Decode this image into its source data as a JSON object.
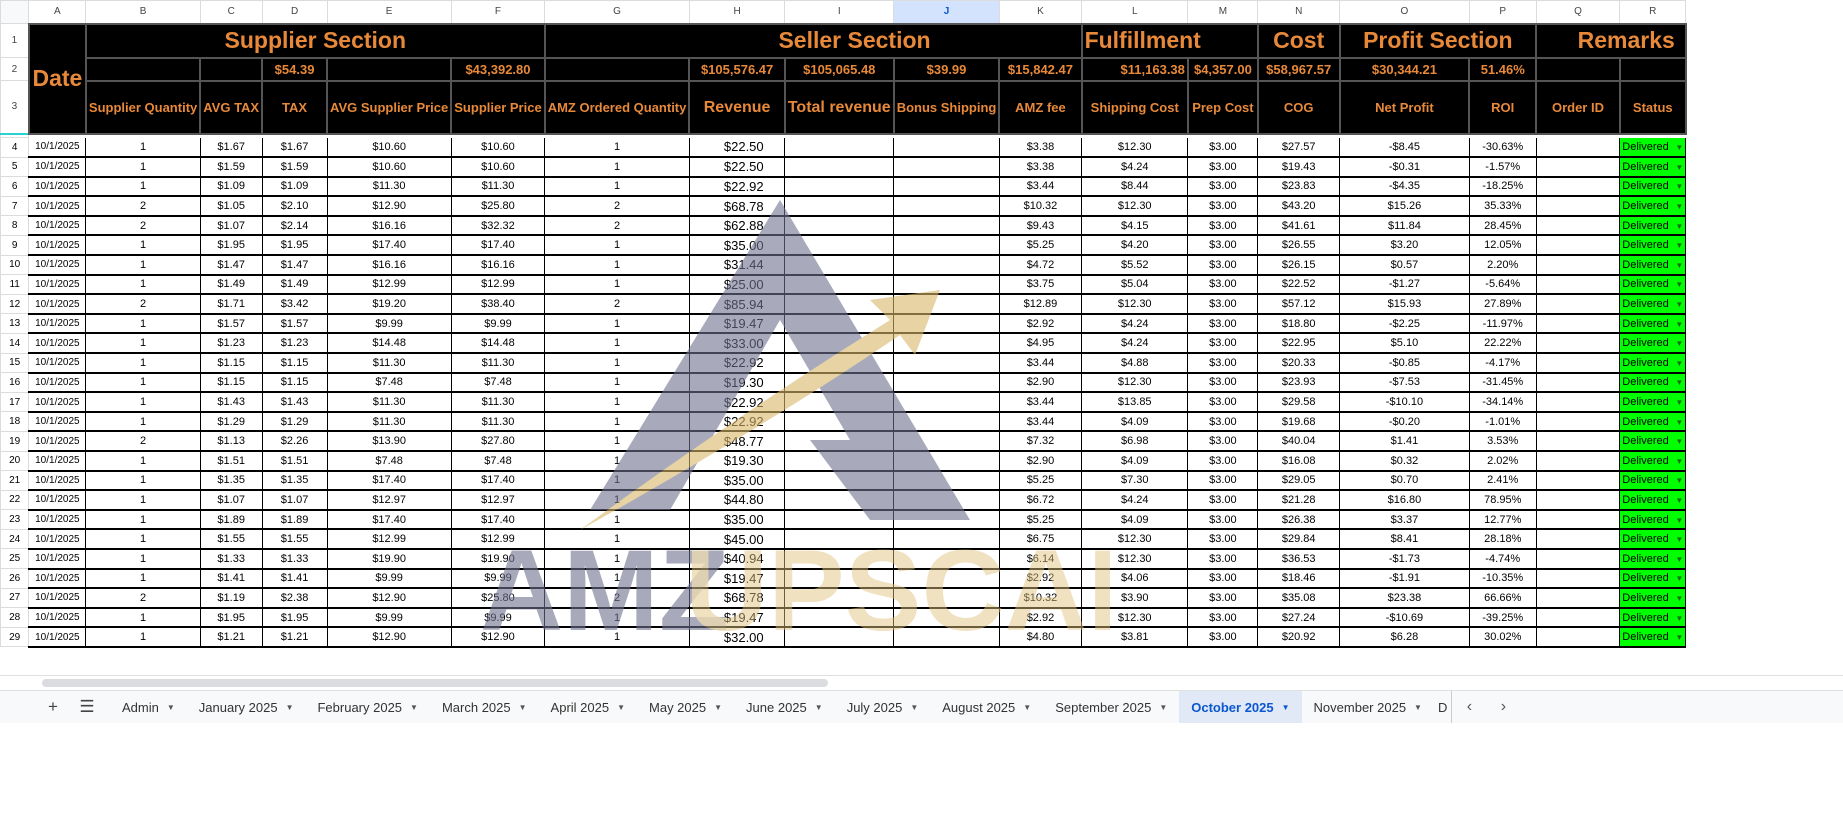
{
  "columns": [
    "A",
    "B",
    "C",
    "D",
    "E",
    "F",
    "G",
    "H",
    "I",
    "J",
    "K",
    "L",
    "M",
    "N",
    "O",
    "P",
    "Q",
    "R"
  ],
  "selected_column": "J",
  "header": {
    "date": "Date",
    "sections": {
      "supplier": "Supplier Section",
      "seller": "Seller Section",
      "fulfillment": "Fulfillment",
      "cost": "Cost",
      "profit": "Profit Section",
      "remarks": "Remarks"
    },
    "totals": {
      "D": "$54.39",
      "F": "$43,392.80",
      "H": "$105,576.47",
      "I": "$105,065.48",
      "J": "$39.99",
      "K": "$15,842.47",
      "L": "$11,163.38",
      "M": "$4,357.00",
      "N": "$58,967.57",
      "O": "$30,344.21",
      "P": "51.46%"
    },
    "labels": {
      "B": "Supplier Quantity",
      "C": "AVG TAX",
      "D": "TAX",
      "E": "AVG Supplier Price",
      "F": "Supplier Price",
      "G": "AMZ Ordered Quantity",
      "H": "Revenue",
      "I": "Total revenue",
      "J": "Bonus Shipping",
      "K": "AMZ fee",
      "L": "Shipping Cost",
      "M": "Prep Cost",
      "N": "COG",
      "O": "Net Profit",
      "P": "ROI",
      "Q": "Order ID",
      "R": "Status"
    }
  },
  "colors": {
    "header_bg": "#000000",
    "header_text": "#e8893a",
    "status_delivered": "#00ff00",
    "separator": "#2ad1d1"
  },
  "rows": [
    {
      "n": "4",
      "date": "10/1/2025",
      "qty": "1",
      "avg_tax": "$1.67",
      "tax": "$1.67",
      "avg_sup": "$10.60",
      "sup": "$10.60",
      "amz_qty": "1",
      "revenue": "$22.50",
      "total_rev": "",
      "bonus": "",
      "fee": "$3.38",
      "ship": "$12.30",
      "prep": "$3.00",
      "cog": "$27.57",
      "net": "-$8.45",
      "roi": "-30.63%",
      "order": "",
      "status": "Delivered"
    },
    {
      "n": "5",
      "date": "10/1/2025",
      "qty": "1",
      "avg_tax": "$1.59",
      "tax": "$1.59",
      "avg_sup": "$10.60",
      "sup": "$10.60",
      "amz_qty": "1",
      "revenue": "$22.50",
      "total_rev": "",
      "bonus": "",
      "fee": "$3.38",
      "ship": "$4.24",
      "prep": "$3.00",
      "cog": "$19.43",
      "net": "-$0.31",
      "roi": "-1.57%",
      "order": "",
      "status": "Delivered"
    },
    {
      "n": "6",
      "date": "10/1/2025",
      "qty": "1",
      "avg_tax": "$1.09",
      "tax": "$1.09",
      "avg_sup": "$11.30",
      "sup": "$11.30",
      "amz_qty": "1",
      "revenue": "$22.92",
      "total_rev": "",
      "bonus": "",
      "fee": "$3.44",
      "ship": "$8.44",
      "prep": "$3.00",
      "cog": "$23.83",
      "net": "-$4.35",
      "roi": "-18.25%",
      "order": "",
      "status": "Delivered"
    },
    {
      "n": "7",
      "date": "10/1/2025",
      "qty": "2",
      "avg_tax": "$1.05",
      "tax": "$2.10",
      "avg_sup": "$12.90",
      "sup": "$25.80",
      "amz_qty": "2",
      "revenue": "$68.78",
      "total_rev": "",
      "bonus": "",
      "fee": "$10.32",
      "ship": "$12.30",
      "prep": "$3.00",
      "cog": "$43.20",
      "net": "$15.26",
      "roi": "35.33%",
      "order": "",
      "status": "Delivered"
    },
    {
      "n": "8",
      "date": "10/1/2025",
      "qty": "2",
      "avg_tax": "$1.07",
      "tax": "$2.14",
      "avg_sup": "$16.16",
      "sup": "$32.32",
      "amz_qty": "2",
      "revenue": "$62.88",
      "total_rev": "",
      "bonus": "",
      "fee": "$9.43",
      "ship": "$4.15",
      "prep": "$3.00",
      "cog": "$41.61",
      "net": "$11.84",
      "roi": "28.45%",
      "order": "",
      "status": "Delivered"
    },
    {
      "n": "9",
      "date": "10/1/2025",
      "qty": "1",
      "avg_tax": "$1.95",
      "tax": "$1.95",
      "avg_sup": "$17.40",
      "sup": "$17.40",
      "amz_qty": "1",
      "revenue": "$35.00",
      "total_rev": "",
      "bonus": "",
      "fee": "$5.25",
      "ship": "$4.20",
      "prep": "$3.00",
      "cog": "$26.55",
      "net": "$3.20",
      "roi": "12.05%",
      "order": "",
      "status": "Delivered"
    },
    {
      "n": "10",
      "date": "10/1/2025",
      "qty": "1",
      "avg_tax": "$1.47",
      "tax": "$1.47",
      "avg_sup": "$16.16",
      "sup": "$16.16",
      "amz_qty": "1",
      "revenue": "$31.44",
      "total_rev": "",
      "bonus": "",
      "fee": "$4.72",
      "ship": "$5.52",
      "prep": "$3.00",
      "cog": "$26.15",
      "net": "$0.57",
      "roi": "2.20%",
      "order": "",
      "status": "Delivered"
    },
    {
      "n": "11",
      "date": "10/1/2025",
      "qty": "1",
      "avg_tax": "$1.49",
      "tax": "$1.49",
      "avg_sup": "$12.99",
      "sup": "$12.99",
      "amz_qty": "1",
      "revenue": "$25.00",
      "total_rev": "",
      "bonus": "",
      "fee": "$3.75",
      "ship": "$5.04",
      "prep": "$3.00",
      "cog": "$22.52",
      "net": "-$1.27",
      "roi": "-5.64%",
      "order": "",
      "status": "Delivered"
    },
    {
      "n": "12",
      "date": "10/1/2025",
      "qty": "2",
      "avg_tax": "$1.71",
      "tax": "$3.42",
      "avg_sup": "$19.20",
      "sup": "$38.40",
      "amz_qty": "2",
      "revenue": "$85.94",
      "total_rev": "",
      "bonus": "",
      "fee": "$12.89",
      "ship": "$12.30",
      "prep": "$3.00",
      "cog": "$57.12",
      "net": "$15.93",
      "roi": "27.89%",
      "order": "",
      "status": "Delivered"
    },
    {
      "n": "13",
      "date": "10/1/2025",
      "qty": "1",
      "avg_tax": "$1.57",
      "tax": "$1.57",
      "avg_sup": "$9.99",
      "sup": "$9.99",
      "amz_qty": "1",
      "revenue": "$19.47",
      "total_rev": "",
      "bonus": "",
      "fee": "$2.92",
      "ship": "$4.24",
      "prep": "$3.00",
      "cog": "$18.80",
      "net": "-$2.25",
      "roi": "-11.97%",
      "order": "",
      "status": "Delivered"
    },
    {
      "n": "14",
      "date": "10/1/2025",
      "qty": "1",
      "avg_tax": "$1.23",
      "tax": "$1.23",
      "avg_sup": "$14.48",
      "sup": "$14.48",
      "amz_qty": "1",
      "revenue": "$33.00",
      "total_rev": "",
      "bonus": "",
      "fee": "$4.95",
      "ship": "$4.24",
      "prep": "$3.00",
      "cog": "$22.95",
      "net": "$5.10",
      "roi": "22.22%",
      "order": "",
      "status": "Delivered"
    },
    {
      "n": "15",
      "date": "10/1/2025",
      "qty": "1",
      "avg_tax": "$1.15",
      "tax": "$1.15",
      "avg_sup": "$11.30",
      "sup": "$11.30",
      "amz_qty": "1",
      "revenue": "$22.92",
      "total_rev": "",
      "bonus": "",
      "fee": "$3.44",
      "ship": "$4.88",
      "prep": "$3.00",
      "cog": "$20.33",
      "net": "-$0.85",
      "roi": "-4.17%",
      "order": "",
      "status": "Delivered"
    },
    {
      "n": "16",
      "date": "10/1/2025",
      "qty": "1",
      "avg_tax": "$1.15",
      "tax": "$1.15",
      "avg_sup": "$7.48",
      "sup": "$7.48",
      "amz_qty": "1",
      "revenue": "$19.30",
      "total_rev": "",
      "bonus": "",
      "fee": "$2.90",
      "ship": "$12.30",
      "prep": "$3.00",
      "cog": "$23.93",
      "net": "-$7.53",
      "roi": "-31.45%",
      "order": "",
      "status": "Delivered"
    },
    {
      "n": "17",
      "date": "10/1/2025",
      "qty": "1",
      "avg_tax": "$1.43",
      "tax": "$1.43",
      "avg_sup": "$11.30",
      "sup": "$11.30",
      "amz_qty": "1",
      "revenue": "$22.92",
      "total_rev": "",
      "bonus": "",
      "fee": "$3.44",
      "ship": "$13.85",
      "prep": "$3.00",
      "cog": "$29.58",
      "net": "-$10.10",
      "roi": "-34.14%",
      "order": "",
      "status": "Delivered"
    },
    {
      "n": "18",
      "date": "10/1/2025",
      "qty": "1",
      "avg_tax": "$1.29",
      "tax": "$1.29",
      "avg_sup": "$11.30",
      "sup": "$11.30",
      "amz_qty": "1",
      "revenue": "$22.92",
      "total_rev": "",
      "bonus": "",
      "fee": "$3.44",
      "ship": "$4.09",
      "prep": "$3.00",
      "cog": "$19.68",
      "net": "-$0.20",
      "roi": "-1.01%",
      "order": "",
      "status": "Delivered"
    },
    {
      "n": "19",
      "date": "10/1/2025",
      "qty": "2",
      "avg_tax": "$1.13",
      "tax": "$2.26",
      "avg_sup": "$13.90",
      "sup": "$27.80",
      "amz_qty": "1",
      "revenue": "$48.77",
      "total_rev": "",
      "bonus": "",
      "fee": "$7.32",
      "ship": "$6.98",
      "prep": "$3.00",
      "cog": "$40.04",
      "net": "$1.41",
      "roi": "3.53%",
      "order": "",
      "status": "Delivered"
    },
    {
      "n": "20",
      "date": "10/1/2025",
      "qty": "1",
      "avg_tax": "$1.51",
      "tax": "$1.51",
      "avg_sup": "$7.48",
      "sup": "$7.48",
      "amz_qty": "1",
      "revenue": "$19.30",
      "total_rev": "",
      "bonus": "",
      "fee": "$2.90",
      "ship": "$4.09",
      "prep": "$3.00",
      "cog": "$16.08",
      "net": "$0.32",
      "roi": "2.02%",
      "order": "",
      "status": "Delivered"
    },
    {
      "n": "21",
      "date": "10/1/2025",
      "qty": "1",
      "avg_tax": "$1.35",
      "tax": "$1.35",
      "avg_sup": "$17.40",
      "sup": "$17.40",
      "amz_qty": "1",
      "revenue": "$35.00",
      "total_rev": "",
      "bonus": "",
      "fee": "$5.25",
      "ship": "$7.30",
      "prep": "$3.00",
      "cog": "$29.05",
      "net": "$0.70",
      "roi": "2.41%",
      "order": "",
      "status": "Delivered"
    },
    {
      "n": "22",
      "date": "10/1/2025",
      "qty": "1",
      "avg_tax": "$1.07",
      "tax": "$1.07",
      "avg_sup": "$12.97",
      "sup": "$12.97",
      "amz_qty": "1",
      "revenue": "$44.80",
      "total_rev": "",
      "bonus": "",
      "fee": "$6.72",
      "ship": "$4.24",
      "prep": "$3.00",
      "cog": "$21.28",
      "net": "$16.80",
      "roi": "78.95%",
      "order": "",
      "status": "Delivered"
    },
    {
      "n": "23",
      "date": "10/1/2025",
      "qty": "1",
      "avg_tax": "$1.89",
      "tax": "$1.89",
      "avg_sup": "$17.40",
      "sup": "$17.40",
      "amz_qty": "1",
      "revenue": "$35.00",
      "total_rev": "",
      "bonus": "",
      "fee": "$5.25",
      "ship": "$4.09",
      "prep": "$3.00",
      "cog": "$26.38",
      "net": "$3.37",
      "roi": "12.77%",
      "order": "",
      "status": "Delivered"
    },
    {
      "n": "24",
      "date": "10/1/2025",
      "qty": "1",
      "avg_tax": "$1.55",
      "tax": "$1.55",
      "avg_sup": "$12.99",
      "sup": "$12.99",
      "amz_qty": "1",
      "revenue": "$45.00",
      "total_rev": "",
      "bonus": "",
      "fee": "$6.75",
      "ship": "$12.30",
      "prep": "$3.00",
      "cog": "$29.84",
      "net": "$8.41",
      "roi": "28.18%",
      "order": "",
      "status": "Delivered"
    },
    {
      "n": "25",
      "date": "10/1/2025",
      "qty": "1",
      "avg_tax": "$1.33",
      "tax": "$1.33",
      "avg_sup": "$19.90",
      "sup": "$19.90",
      "amz_qty": "1",
      "revenue": "$40.94",
      "total_rev": "",
      "bonus": "",
      "fee": "$6.14",
      "ship": "$12.30",
      "prep": "$3.00",
      "cog": "$36.53",
      "net": "-$1.73",
      "roi": "-4.74%",
      "order": "",
      "status": "Delivered"
    },
    {
      "n": "26",
      "date": "10/1/2025",
      "qty": "1",
      "avg_tax": "$1.41",
      "tax": "$1.41",
      "avg_sup": "$9.99",
      "sup": "$9.99",
      "amz_qty": "1",
      "revenue": "$19.47",
      "total_rev": "",
      "bonus": "",
      "fee": "$2.92",
      "ship": "$4.06",
      "prep": "$3.00",
      "cog": "$18.46",
      "net": "-$1.91",
      "roi": "-10.35%",
      "order": "",
      "status": "Delivered"
    },
    {
      "n": "27",
      "date": "10/1/2025",
      "qty": "2",
      "avg_tax": "$1.19",
      "tax": "$2.38",
      "avg_sup": "$12.90",
      "sup": "$25.80",
      "amz_qty": "2",
      "revenue": "$68.78",
      "total_rev": "",
      "bonus": "",
      "fee": "$10.32",
      "ship": "$3.90",
      "prep": "$3.00",
      "cog": "$35.08",
      "net": "$23.38",
      "roi": "66.66%",
      "order": "",
      "status": "Delivered"
    },
    {
      "n": "28",
      "date": "10/1/2025",
      "qty": "1",
      "avg_tax": "$1.95",
      "tax": "$1.95",
      "avg_sup": "$9.99",
      "sup": "$9.99",
      "amz_qty": "1",
      "revenue": "$19.47",
      "total_rev": "",
      "bonus": "",
      "fee": "$2.92",
      "ship": "$12.30",
      "prep": "$3.00",
      "cog": "$27.24",
      "net": "-$10.69",
      "roi": "-39.25%",
      "order": "",
      "status": "Delivered"
    },
    {
      "n": "29",
      "date": "10/1/2025",
      "qty": "1",
      "avg_tax": "$1.21",
      "tax": "$1.21",
      "avg_sup": "$12.90",
      "sup": "$12.90",
      "amz_qty": "1",
      "revenue": "$32.00",
      "total_rev": "",
      "bonus": "",
      "fee": "$4.80",
      "ship": "$3.81",
      "prep": "$3.00",
      "cog": "$20.92",
      "net": "$6.28",
      "roi": "30.02%",
      "order": "",
      "status": "Delivered"
    }
  ],
  "row_numbers": {
    "r1": "1",
    "r2": "2",
    "r3": "3"
  },
  "watermark": {
    "part1": "AMZ",
    "part2": "UPSCALE",
    "color1": "#9a9cb2",
    "color2": "#e8d3a0"
  },
  "tabs": {
    "add_icon": "plus-icon",
    "list_icon": "menu-icon",
    "items": [
      "Admin",
      "January 2025",
      "February 2025",
      "March 2025",
      "April 2025",
      "May 2025",
      "June 2025",
      "July 2025",
      "August 2025",
      "September 2025",
      "October 2025",
      "November 2025",
      "D"
    ],
    "active": "October 2025"
  }
}
